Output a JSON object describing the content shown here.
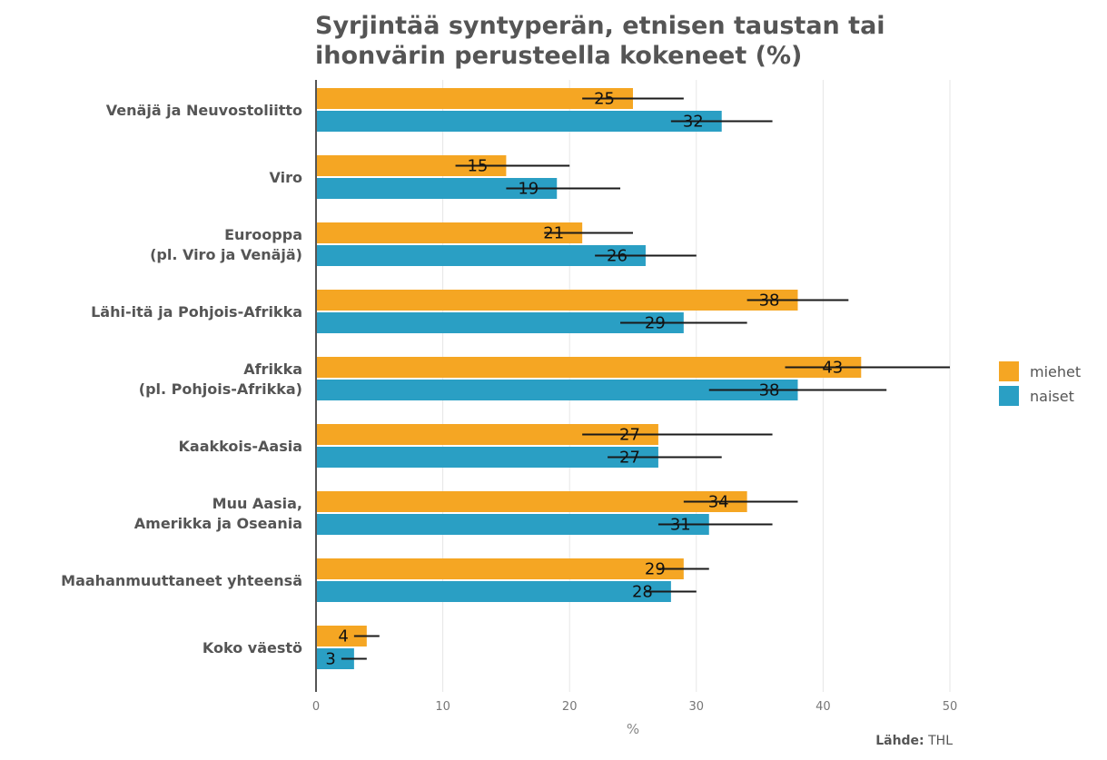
{
  "chart_data": {
    "type": "bar",
    "orientation": "horizontal",
    "title_lines": [
      "Syrjintää syntyperän, etnisen taustan tai",
      "ihonvärin perusteella kokeneet (%)"
    ],
    "xlabel": "%",
    "ylabel": "",
    "xlim": [
      0,
      50
    ],
    "x_ticks": [
      0,
      10,
      20,
      30,
      40,
      50
    ],
    "grid": true,
    "legend_position": "right",
    "categories": [
      [
        "Venäjä ja Neuvostoliitto"
      ],
      [
        "Viro"
      ],
      [
        "Eurooppa",
        "(pl. Viro ja Venäjä)"
      ],
      [
        "Lähi-itä ja Pohjois-Afrikka"
      ],
      [
        "Afrikka",
        "(pl. Pohjois-Afrikka)"
      ],
      [
        "Kaakkois-Aasia"
      ],
      [
        "Muu Aasia,",
        "Amerikka ja Oseania"
      ],
      [
        "Maahanmuuttaneet yhteensä"
      ],
      [
        "Koko väestö"
      ]
    ],
    "series": [
      {
        "name": "miehet",
        "color": "#F5A623",
        "values": [
          25,
          15,
          21,
          38,
          43,
          27,
          34,
          29,
          4
        ],
        "ci_low": [
          21,
          11,
          18,
          34,
          37,
          21,
          29,
          27,
          3
        ],
        "ci_high": [
          29,
          20,
          25,
          42,
          50,
          36,
          38,
          31,
          5
        ]
      },
      {
        "name": "naiset",
        "color": "#2A9FC4",
        "values": [
          32,
          19,
          26,
          29,
          38,
          27,
          31,
          28,
          3
        ],
        "ci_low": [
          28,
          15,
          22,
          24,
          31,
          23,
          27,
          26,
          2
        ],
        "ci_high": [
          36,
          24,
          30,
          34,
          45,
          32,
          36,
          30,
          4
        ]
      }
    ],
    "source": {
      "label": "Lähde:",
      "value": "THL"
    }
  }
}
